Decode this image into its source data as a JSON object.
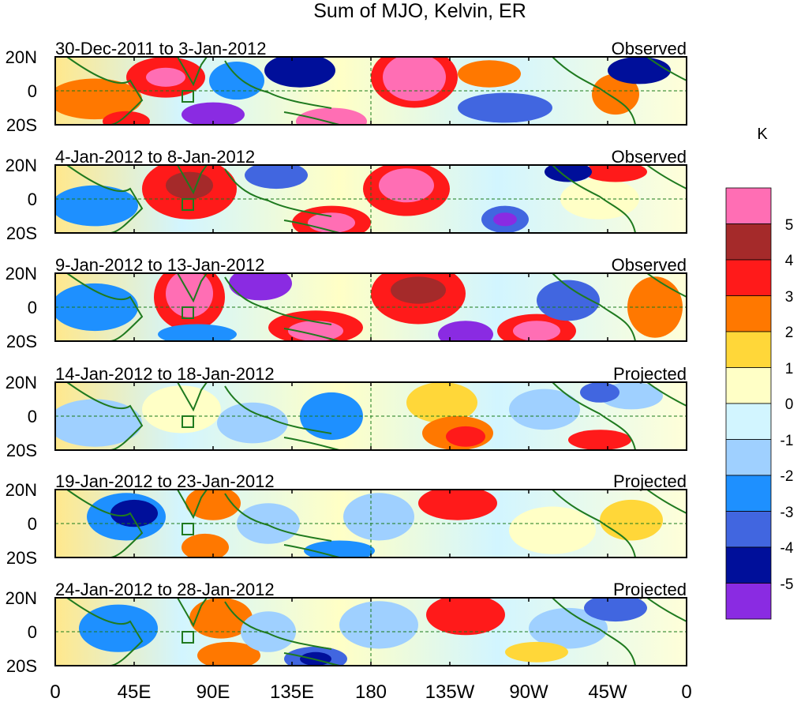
{
  "title": "Sum of MJO, Kelvin, ER",
  "lat_labels": [
    "20N",
    "0",
    "20S"
  ],
  "lon_labels": [
    "0",
    "45E",
    "90E",
    "135E",
    "180",
    "135W",
    "90W",
    "45W",
    "0"
  ],
  "legend": {
    "unit": "K",
    "levels": [
      "5",
      "4",
      "3",
      "2",
      "1",
      "0",
      "-1",
      "-2",
      "-3",
      "-4",
      "-5"
    ],
    "colors_top_to_bottom": [
      "#ff6eb4",
      "#a52a2a",
      "#ff1a1a",
      "#ff7800",
      "#ffd739",
      "#ffffc6",
      "#d2f5ff",
      "#9fd0ff",
      "#1e90ff",
      "#4166e0",
      "#000f9a",
      "#8a2be2"
    ]
  },
  "panels": [
    {
      "date_range": "30-Dec-2011 to 3-Jan-2012",
      "status": "Observed"
    },
    {
      "date_range": "4-Jan-2012 to 8-Jan-2012",
      "status": "Observed"
    },
    {
      "date_range": "9-Jan-2012 to 13-Jan-2012",
      "status": "Observed"
    },
    {
      "date_range": "14-Jan-2012 to 18-Jan-2012",
      "status": "Projected"
    },
    {
      "date_range": "19-Jan-2012 to 23-Jan-2012",
      "status": "Projected"
    },
    {
      "date_range": "24-Jan-2012 to 28-Jan-2012",
      "status": "Projected"
    }
  ]
}
